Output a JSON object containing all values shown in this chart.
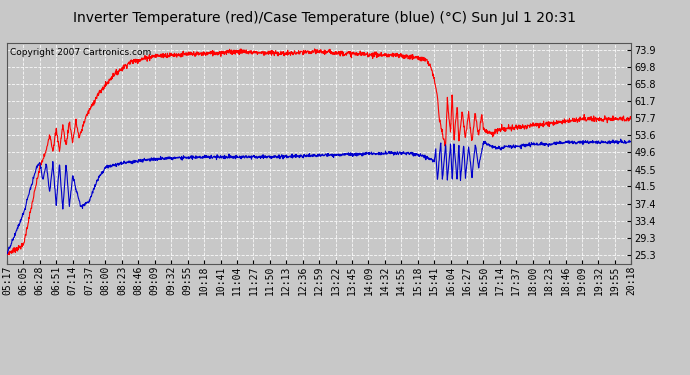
{
  "title": "Inverter Temperature (red)/Case Temperature (blue) (°C) Sun Jul 1 20:31",
  "copyright": "Copyright 2007 Cartronics.com",
  "yticks": [
    25.3,
    29.3,
    33.4,
    37.4,
    41.5,
    45.5,
    49.6,
    53.6,
    57.7,
    61.7,
    65.8,
    69.8,
    73.9
  ],
  "ymin": 23.0,
  "ymax": 75.5,
  "background_color": "#c8c8c8",
  "plot_bg_color": "#c8c8c8",
  "grid_color": "#ffffff",
  "red_color": "#ff0000",
  "blue_color": "#0000cc",
  "title_fontsize": 10,
  "copyright_fontsize": 6.5,
  "tick_fontsize": 7,
  "xtick_labels": [
    "05:17",
    "06:05",
    "06:28",
    "06:51",
    "07:14",
    "07:37",
    "08:00",
    "08:23",
    "08:46",
    "09:09",
    "09:32",
    "09:55",
    "10:18",
    "10:41",
    "11:04",
    "11:27",
    "11:50",
    "12:13",
    "12:36",
    "12:59",
    "13:22",
    "13:45",
    "14:09",
    "14:32",
    "14:55",
    "15:18",
    "15:41",
    "16:04",
    "16:27",
    "16:50",
    "17:14",
    "17:37",
    "18:00",
    "18:23",
    "18:46",
    "19:09",
    "19:32",
    "19:55",
    "20:18"
  ]
}
